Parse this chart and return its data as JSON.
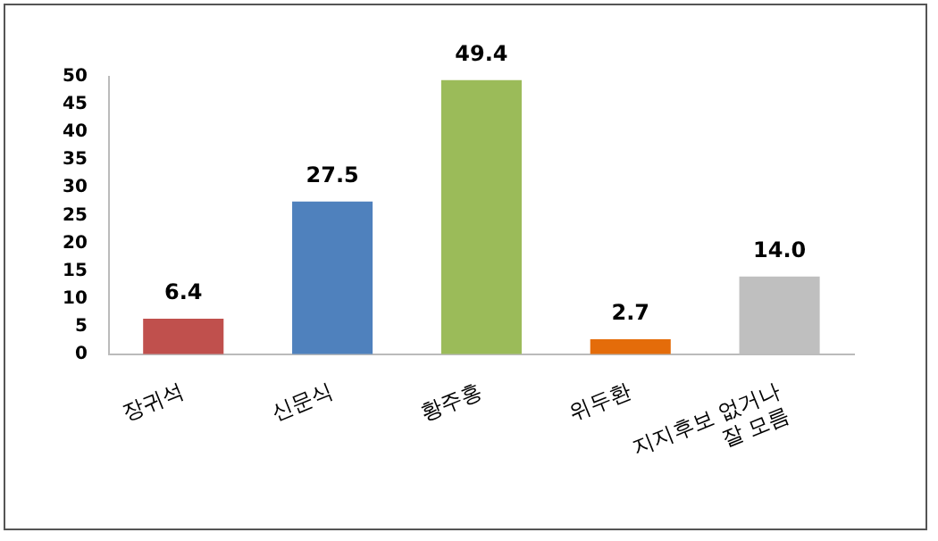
{
  "chart_data": {
    "type": "bar",
    "categories": [
      "장귀석",
      "신문식",
      "황주홍",
      "위두환",
      "지지후보 없거나\n잘 모름"
    ],
    "values": [
      6.4,
      27.5,
      49.4,
      2.7,
      14.0
    ],
    "colors": [
      "#c0504d",
      "#4f81bd",
      "#9bbb59",
      "#e46c0a",
      "#bfbfbf"
    ],
    "value_labels": [
      "6.4",
      "27.5",
      "49.4",
      "2.7",
      "14.0"
    ],
    "ylim": [
      0,
      50
    ],
    "yticks": [
      0,
      5,
      10,
      15,
      20,
      25,
      30,
      35,
      40,
      45,
      50
    ],
    "grid": false,
    "legend": false
  }
}
